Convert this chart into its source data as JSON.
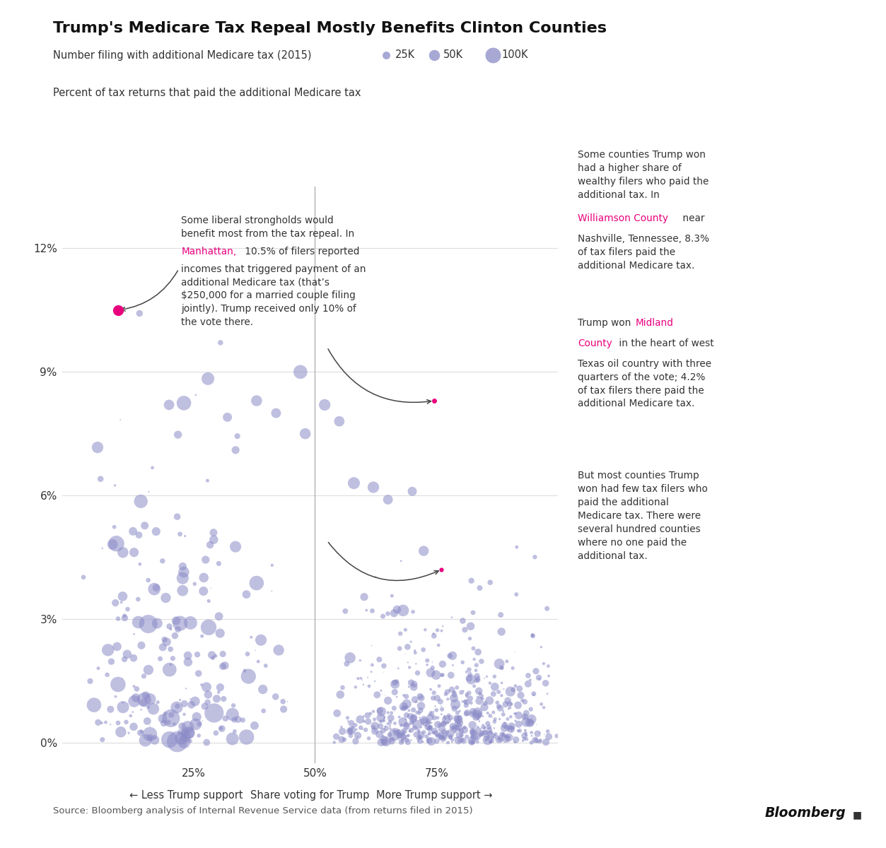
{
  "title": "Trump's Medicare Tax Repeal Mostly Benefits Clinton Counties",
  "legend_label": "Number filing with additional Medicare tax (2015)",
  "legend_sizes": [
    25000,
    50000,
    100000
  ],
  "legend_size_labels": [
    "25K",
    "50K",
    "100K"
  ],
  "ylabel": "Percent of tax returns that paid the additional Medicare tax",
  "xlabel_center": "Share voting for Trump",
  "xlabel_left": "← Less Trump support",
  "xlabel_right": "More Trump support →",
  "source": "Source: Bloomberg analysis of Internal Revenue Service data (from returns filed in 2015)",
  "background_color": "#ffffff",
  "scatter_color": "#8b8bc8",
  "highlight_color": "#e8007d",
  "vline_x": 50,
  "yticks": [
    0,
    3,
    6,
    9,
    12
  ],
  "ylim": [
    -0.5,
    13.5
  ],
  "xlim": [
    -2,
    100
  ],
  "xticks": [
    25,
    50,
    75
  ],
  "size_scale": 0.0025,
  "manhattan_x": 9.5,
  "manhattan_y": 10.5,
  "williamson_x": 74.5,
  "williamson_y": 8.3,
  "midland_x": 76.0,
  "midland_y": 4.2
}
